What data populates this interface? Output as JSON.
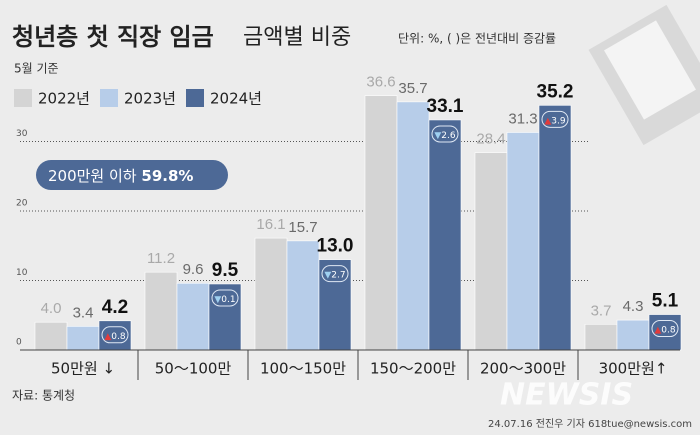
{
  "chart_data": {
    "type": "bar",
    "title": "청년층 첫 직장 임금",
    "title_detail": "금액별 비중",
    "unit_note": "단위: %, ( )은 전년대비 증감률",
    "subtitle": "5월 기준",
    "callout": {
      "label": "200만원 이하",
      "value": "59.8%"
    },
    "source": "자료: 통계청",
    "credit": "24.07.16 전진우 기자 618tue@newsis.com",
    "watermark": "NEWSIS",
    "categories": [
      "50만원 ↓",
      "50～100만",
      "100～150만",
      "150～200만",
      "200～300만",
      "300만원↑"
    ],
    "series": [
      {
        "name": "2022년",
        "color": "#d4d4d4",
        "label_color": "#a9a9a9",
        "values": [
          4.0,
          11.2,
          16.1,
          36.6,
          28.4,
          3.7
        ],
        "value_labels": [
          "4.0",
          "11.2",
          "16.1",
          "36.6",
          "28.4",
          "3.7"
        ]
      },
      {
        "name": "2023년",
        "color": "#b7cde9",
        "label_color": "#6a6a6a",
        "values": [
          3.4,
          9.6,
          15.7,
          35.7,
          31.3,
          4.3
        ],
        "value_labels": [
          "3.4",
          "9.6",
          "15.7",
          "35.7",
          "31.3",
          "4.3"
        ]
      },
      {
        "name": "2024년",
        "color": "#4d6996",
        "label_color": "#111111",
        "values": [
          4.2,
          9.5,
          13.0,
          33.1,
          35.2,
          5.1
        ],
        "value_labels": [
          "4.2",
          "9.5",
          "13.0",
          "33.1",
          "35.2",
          "5.1"
        ],
        "changes": [
          {
            "direction": "▲",
            "value": 0.8
          },
          {
            "direction": "▼",
            "value": 0.1
          },
          {
            "direction": "▼",
            "value": 2.7
          },
          {
            "direction": "▼",
            "value": 2.6
          },
          {
            "direction": "▲",
            "value": 3.9
          },
          {
            "direction": "▲",
            "value": 0.8
          }
        ]
      }
    ],
    "ylim": [
      0,
      40
    ],
    "yticks": [
      0,
      10,
      20,
      30
    ],
    "grid": true
  }
}
